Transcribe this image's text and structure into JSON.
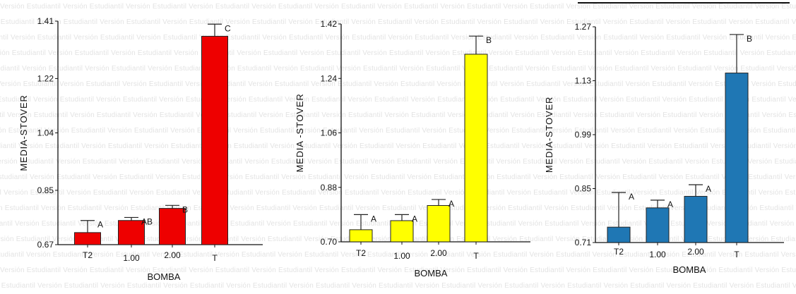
{
  "watermark": "Versión Estudiantil",
  "colors": {
    "red": "#ee0000",
    "yellow": "#ffff00",
    "blue": "#1f77b4",
    "axis": "#111111"
  },
  "chart_data": [
    {
      "type": "bar",
      "xlabel": "BOMBA",
      "ylabel": "MEDIA-STOVER",
      "categories": [
        "T2",
        "1.00",
        "2.00",
        "T"
      ],
      "values": [
        0.71,
        0.75,
        0.79,
        1.36
      ],
      "error_bars": [
        0.75,
        0.76,
        0.8,
        1.4
      ],
      "group_labels": [
        "A",
        "A",
        "AB",
        "B",
        "C"
      ],
      "bar_labels": [
        "A",
        "AB",
        "B",
        "C"
      ],
      "ylim": [
        0.67,
        1.41
      ],
      "yticks": [
        "0.67",
        "0.85",
        "1.04",
        "1.22",
        "1.41"
      ],
      "color": "#ee0000"
    },
    {
      "type": "bar",
      "xlabel": "BOMBA",
      "ylabel": "MEDIA -STOVER",
      "categories": [
        "T2",
        "1.00",
        "2.00",
        "T"
      ],
      "values": [
        0.74,
        0.77,
        0.82,
        1.32
      ],
      "error_bars": [
        0.79,
        0.79,
        0.84,
        1.38
      ],
      "bar_labels": [
        "A",
        "A",
        "A",
        "B"
      ],
      "ylim": [
        0.7,
        1.42
      ],
      "yticks": [
        "0.70",
        "0.88",
        "1.06",
        "1.24",
        "1.42"
      ],
      "color": "#ffff00"
    },
    {
      "type": "bar",
      "xlabel": "BOMBA",
      "ylabel": "MEDIA-STOVER",
      "categories": [
        "T2",
        "1.00",
        "2.00",
        "T"
      ],
      "values": [
        0.75,
        0.8,
        0.83,
        1.15
      ],
      "error_bars": [
        0.84,
        0.82,
        0.86,
        1.25
      ],
      "bar_labels": [
        "A",
        "A",
        "A",
        "B"
      ],
      "ylim": [
        0.71,
        1.27
      ],
      "yticks": [
        "0.71",
        "0.85",
        "0.99",
        "1.13",
        "1.27"
      ],
      "color": "#1f77b4"
    }
  ]
}
